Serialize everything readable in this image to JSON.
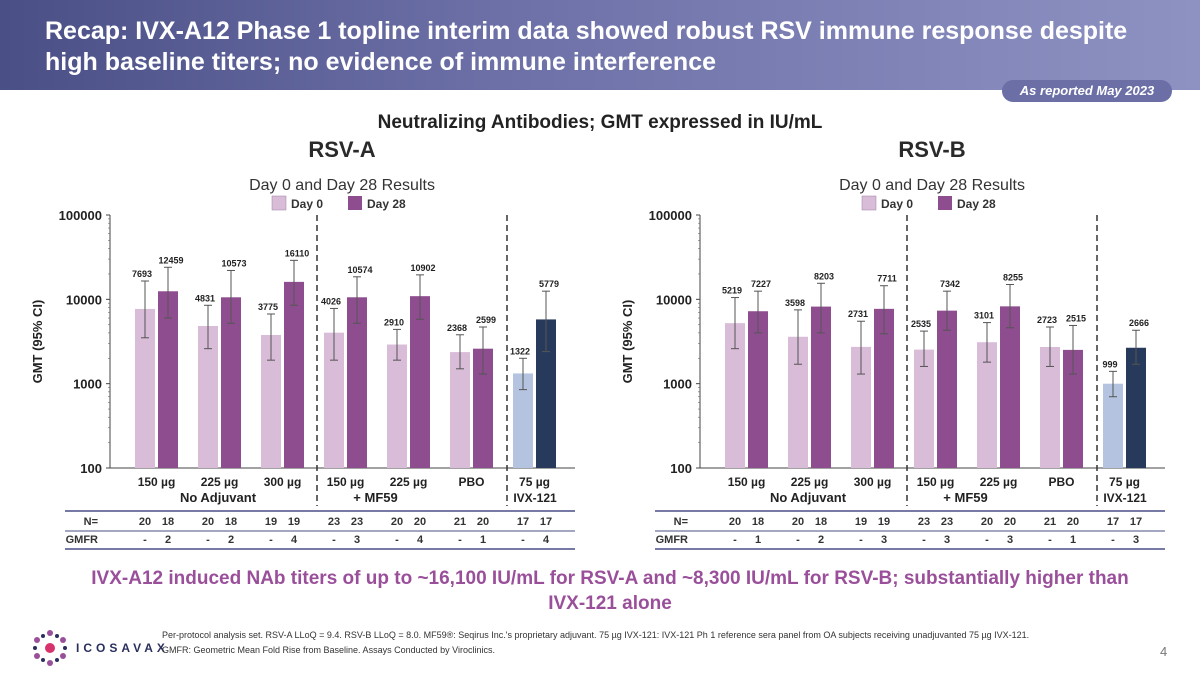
{
  "title": "Recap: IVX-A12 Phase 1 topline interim data showed robust RSV immune response despite high baseline titers; no evidence of immune interference",
  "badge": "As reported May 2023",
  "subtitle": "Neutralizing Antibodies; GMT expressed in IU/mL",
  "headline": "IVX-A12 induced NAb titers of up to ~16,100 IU/mL for RSV-A and ~8,300 IU/mL for RSV-B; substantially higher than IVX-121 alone",
  "footnote": [
    "Per-protocol analysis set. RSV-A LLoQ = 9.4. RSV-B LLoQ = 8.0. MF59®: Seqirus Inc.'s proprietary adjuvant. 75 µg IVX-121: IVX-121 Ph 1 reference sera panel from OA subjects receiving unadjuvanted 75 µg IVX-121.",
    "GMFR: Geometric Mean Fold Rise from Baseline. Assays Conducted by Viroclinics."
  ],
  "logo_text": "ICOSAVAX",
  "page_number": "4",
  "colors": {
    "day0": "#d8bcd8",
    "day28": "#8e4d8e",
    "ivx_day0": "#b3c3e0",
    "ivx_day28": "#283a5c"
  },
  "chart_data": [
    {
      "type": "bar",
      "panel_title": "RSV-A",
      "title": "Day 0 and Day 28 Results",
      "ylabel": "GMT (95% CI)",
      "yscale": "log",
      "ylim": [
        100,
        100000
      ],
      "yticks": [
        "100",
        "1000",
        "10000",
        "100000"
      ],
      "legend": [
        "Day 0",
        "Day 28"
      ],
      "categories": [
        "150 µg",
        "225 µg",
        "300 µg",
        "150 µg",
        "225 µg",
        "PBO",
        "75 µg"
      ],
      "group_labels": [
        "No Adjuvant",
        "+ MF59",
        "IVX-121"
      ],
      "series": [
        {
          "name": "Day 0",
          "values": [
            7693,
            4831,
            3775,
            4026,
            2910,
            2368,
            1322
          ],
          "labels": [
            "7693",
            "4831",
            "3775",
            "4026",
            "2910",
            "2368",
            "1322"
          ]
        },
        {
          "name": "Day 28",
          "values": [
            12459,
            10573,
            16110,
            10574,
            10902,
            2599,
            5779
          ],
          "labels": [
            "12459",
            "10573",
            "16110",
            "10574",
            "10902",
            "2599",
            "5779"
          ]
        }
      ],
      "ci_low": [
        [
          3500,
          2600,
          1900,
          1900,
          1900,
          1500,
          850
        ],
        [
          6000,
          5200,
          8500,
          5200,
          5800,
          1300,
          2400
        ]
      ],
      "ci_high": [
        [
          16500,
          8500,
          6700,
          7800,
          4400,
          3800,
          2000
        ],
        [
          24000,
          22000,
          29000,
          18500,
          19500,
          4700,
          12500
        ]
      ],
      "table": {
        "n_label": "N=",
        "gmfr_label": "GMFR",
        "n": [
          [
            "20",
            "18"
          ],
          [
            "20",
            "18"
          ],
          [
            "19",
            "19"
          ],
          [
            "23",
            "23"
          ],
          [
            "20",
            "20"
          ],
          [
            "21",
            "20"
          ],
          [
            "17",
            "17"
          ]
        ],
        "gmfr": [
          [
            "-",
            "2"
          ],
          [
            "-",
            "2"
          ],
          [
            "-",
            "4"
          ],
          [
            "-",
            "3"
          ],
          [
            "-",
            "4"
          ],
          [
            "-",
            "1"
          ],
          [
            "-",
            "4"
          ]
        ]
      }
    },
    {
      "type": "bar",
      "panel_title": "RSV-B",
      "title": "Day 0 and Day 28 Results",
      "ylabel": "GMT (95% CI)",
      "yscale": "log",
      "ylim": [
        100,
        100000
      ],
      "yticks": [
        "100",
        "1000",
        "10000",
        "100000"
      ],
      "legend": [
        "Day 0",
        "Day 28"
      ],
      "categories": [
        "150 µg",
        "225 µg",
        "300 µg",
        "150 µg",
        "225 µg",
        "PBO",
        "75 µg"
      ],
      "group_labels": [
        "No Adjuvant",
        "+ MF59",
        "IVX-121"
      ],
      "series": [
        {
          "name": "Day 0",
          "values": [
            5219,
            3598,
            2731,
            2535,
            3101,
            2723,
            999
          ],
          "labels": [
            "5219",
            "3598",
            "2731",
            "2535",
            "3101",
            "2723",
            "999"
          ]
        },
        {
          "name": "Day 28",
          "values": [
            7227,
            8203,
            7711,
            7342,
            8255,
            2515,
            2666
          ],
          "labels": [
            "7227",
            "8203",
            "7711",
            "7342",
            "8255",
            "2515",
            "2666"
          ]
        }
      ],
      "ci_low": [
        [
          2600,
          1700,
          1300,
          1600,
          1800,
          1600,
          700
        ],
        [
          4000,
          4000,
          3900,
          4300,
          4600,
          1300,
          1700
        ]
      ],
      "ci_high": [
        [
          10500,
          7500,
          5500,
          4200,
          5300,
          4700,
          1400
        ],
        [
          12500,
          15500,
          14500,
          12500,
          15000,
          4900,
          4300
        ]
      ],
      "table": {
        "n_label": "N=",
        "gmfr_label": "GMFR",
        "n": [
          [
            "20",
            "18"
          ],
          [
            "20",
            "18"
          ],
          [
            "19",
            "19"
          ],
          [
            "23",
            "23"
          ],
          [
            "20",
            "20"
          ],
          [
            "21",
            "20"
          ],
          [
            "17",
            "17"
          ]
        ],
        "gmfr": [
          [
            "-",
            "1"
          ],
          [
            "-",
            "2"
          ],
          [
            "-",
            "3"
          ],
          [
            "-",
            "3"
          ],
          [
            "-",
            "3"
          ],
          [
            "-",
            "1"
          ],
          [
            "-",
            "3"
          ]
        ]
      }
    }
  ]
}
